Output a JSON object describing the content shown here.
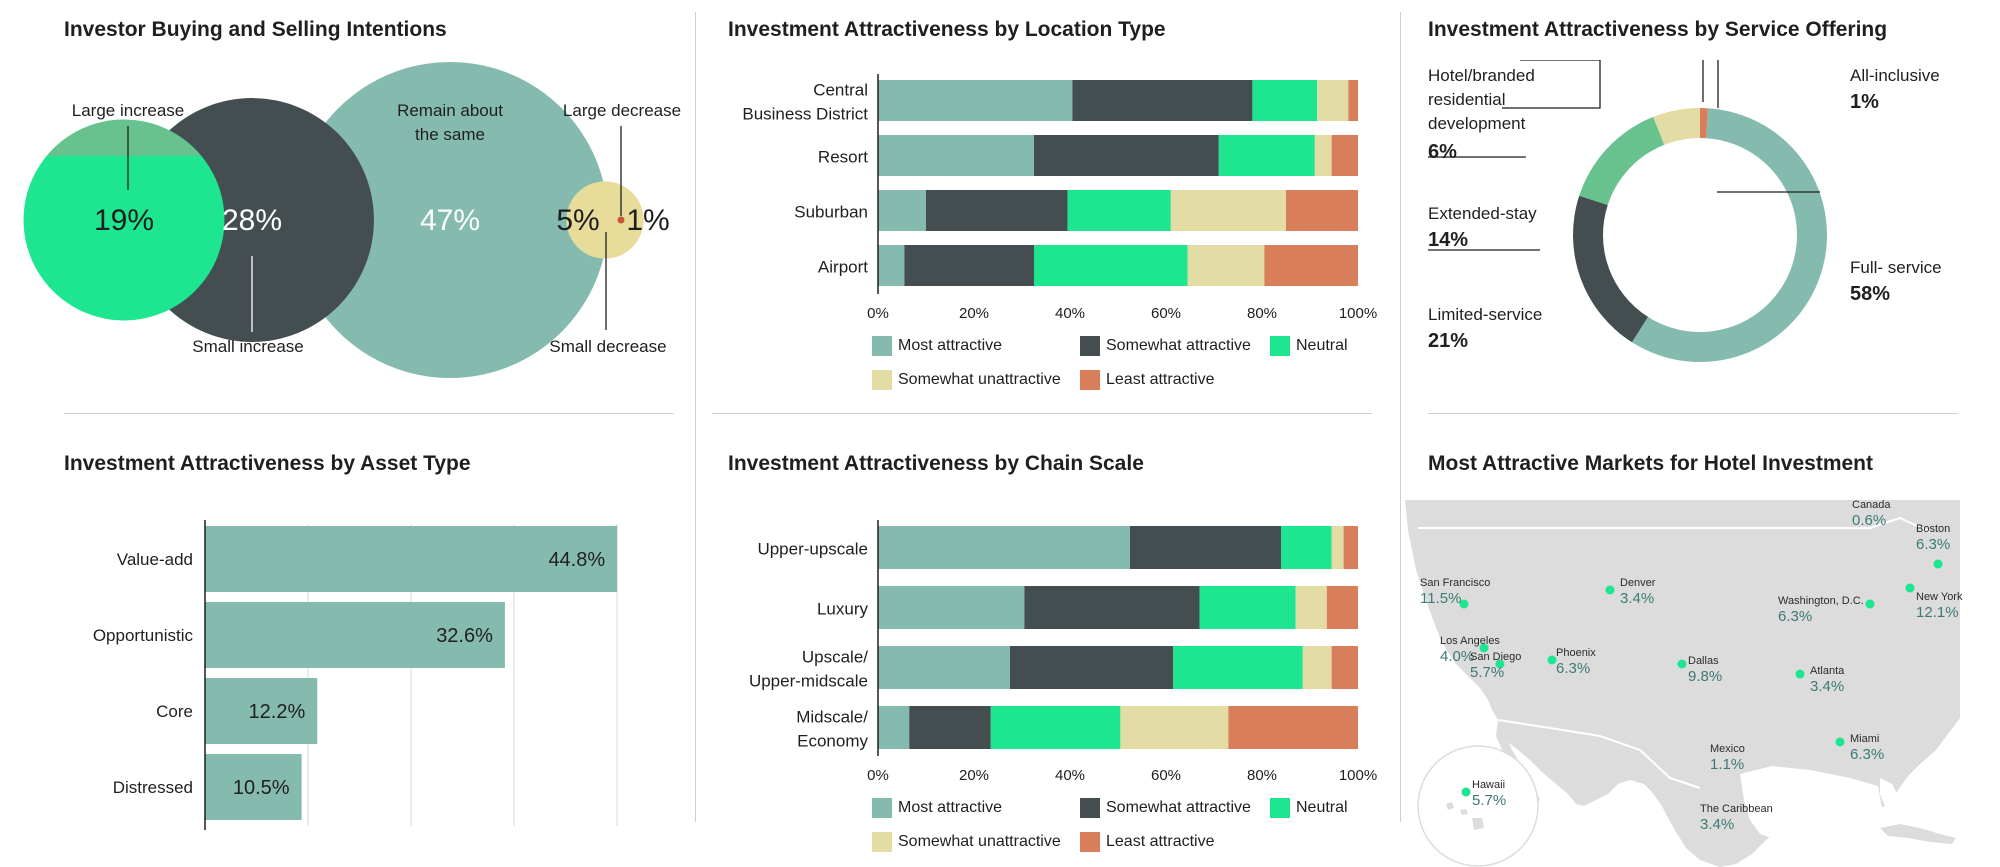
{
  "colors": {
    "most_attractive": "#84bbae",
    "somewhat_attractive": "#444e51",
    "neutral": "#1de590",
    "somewhat_unattractive": "#e3dca5",
    "least_attractive": "#d97e5a",
    "large_increase": "#67c28e",
    "large_decrease": "#e8dc9a",
    "small_decrease": "#c9533b",
    "map_land": "#dcdcdc",
    "map_dot": "#1de590",
    "map_text": "#3c7a73"
  },
  "panel_intentions": {
    "title": "Investor Buying and Selling Intentions"
  },
  "panel_location": {
    "title": "Investment Attractiveness by Location Type"
  },
  "panel_service": {
    "title": "Investment Attractiveness by Service Offering",
    "labels": {
      "hotel_branded": [
        "Hotel/branded",
        "residential",
        "development"
      ],
      "hotel_branded_value": "6%",
      "all_inclusive": "All-inclusive",
      "all_inclusive_value": "1%",
      "extended_stay": "Extended-stay",
      "extended_stay_value": "14%",
      "limited_service": "Limited-service",
      "limited_service_value": "21%",
      "full_service": "Full- service",
      "full_service_value": "58%"
    }
  },
  "panel_asset": {
    "title": "Investment Attractiveness by Asset Type"
  },
  "panel_chain": {
    "title": "Investment Attractiveness by Chain Scale"
  },
  "panel_markets": {
    "title": "Most Attractive Markets for Hotel Investment",
    "markets": [
      {
        "name": "Canada",
        "value": "0.6%",
        "dot": false
      },
      {
        "name": "Boston",
        "value": "6.3%",
        "dot": true
      },
      {
        "name": "San Francisco",
        "value": "11.5%",
        "dot": true
      },
      {
        "name": "Denver",
        "value": "3.4%",
        "dot": true
      },
      {
        "name": "Washington, D.C.",
        "value": "6.3%",
        "dot": true
      },
      {
        "name": "New York",
        "value": "12.1%",
        "dot": true
      },
      {
        "name": "Los Angeles",
        "value": "4.0%",
        "dot": true
      },
      {
        "name": "San Diego",
        "value": "5.7%",
        "dot": true
      },
      {
        "name": "Phoenix",
        "value": "6.3%",
        "dot": true
      },
      {
        "name": "Dallas",
        "value": "9.8%",
        "dot": true
      },
      {
        "name": "Atlanta",
        "value": "3.4%",
        "dot": true
      },
      {
        "name": "Miami",
        "value": "6.3%",
        "dot": true
      },
      {
        "name": "Mexico",
        "value": "1.1%",
        "dot": false
      },
      {
        "name": "Hawaii",
        "value": "5.7%",
        "dot": true
      },
      {
        "name": "The Caribbean",
        "value": "3.4%",
        "dot": false
      }
    ]
  },
  "chart_data": [
    {
      "type": "bubble",
      "title": "Investor Buying and Selling Intentions",
      "categories": [
        "Large increase",
        "Small increase",
        "Remain about the same",
        "Large decrease",
        "Small decrease"
      ],
      "values": [
        19,
        28,
        47,
        5,
        1
      ],
      "value_labels": [
        "19%",
        "28%",
        "47%",
        "5%",
        "1%"
      ],
      "label_lines": [
        [
          "Large increase"
        ],
        [
          "Small increase"
        ],
        [
          "Remain about",
          "the same"
        ],
        [
          "Large decrease"
        ],
        [
          "Small decrease"
        ]
      ]
    },
    {
      "type": "bar",
      "orientation": "horizontal",
      "stacked": true,
      "title": "Investment Attractiveness by Location Type",
      "categories": [
        [
          "Central",
          "Business District"
        ],
        [
          "Resort"
        ],
        [
          "Suburban"
        ],
        [
          "Airport"
        ]
      ],
      "series": [
        {
          "name": "Most attractive",
          "values": [
            40.5,
            32.5,
            10,
            5.5
          ]
        },
        {
          "name": "Somewhat attractive",
          "values": [
            37.5,
            38.5,
            29.5,
            27
          ]
        },
        {
          "name": "Neutral",
          "values": [
            13.5,
            20,
            21.5,
            32
          ]
        },
        {
          "name": "Somewhat unattractive",
          "values": [
            6.5,
            3.5,
            24,
            16
          ]
        },
        {
          "name": "Least attractive",
          "values": [
            2,
            5.5,
            15,
            19.5
          ]
        }
      ],
      "xticks": [
        "0%",
        "20%",
        "40%",
        "60%",
        "80%",
        "100%"
      ],
      "xlim": [
        0,
        100
      ]
    },
    {
      "type": "pie",
      "donut": true,
      "title": "Investment Attractiveness by Service Offering",
      "categories": [
        "Full- service",
        "Limited-service",
        "Extended-stay",
        "Hotel/branded residential development",
        "All-inclusive"
      ],
      "values": [
        58,
        21,
        14,
        6,
        1
      ],
      "colors": [
        "#84bbae",
        "#444e51",
        "#67c28e",
        "#e3dca5",
        "#d97e5a"
      ]
    },
    {
      "type": "bar",
      "orientation": "horizontal",
      "title": "Investment Attractiveness by Asset Type",
      "categories": [
        "Value-add",
        "Opportunistic",
        "Core",
        "Distressed"
      ],
      "values": [
        44.8,
        32.6,
        12.2,
        10.5
      ],
      "value_labels": [
        "44.8%",
        "32.6%",
        "12.2%",
        "10.5%"
      ],
      "xlim": [
        0,
        50
      ]
    },
    {
      "type": "bar",
      "orientation": "horizontal",
      "stacked": true,
      "title": "Investment Attractiveness by Chain Scale",
      "categories": [
        [
          "Upper-upscale"
        ],
        [
          "Luxury"
        ],
        [
          "Upscale/",
          "Upper-midscale"
        ],
        [
          "Midscale/",
          "Economy"
        ]
      ],
      "series": [
        {
          "name": "Most attractive",
          "values": [
            52.5,
            30.5,
            27.5,
            6.5
          ]
        },
        {
          "name": "Somewhat attractive",
          "values": [
            31.5,
            36.5,
            34,
            17
          ]
        },
        {
          "name": "Neutral",
          "values": [
            10.5,
            20,
            27,
            27
          ]
        },
        {
          "name": "Somewhat unattractive",
          "values": [
            2.5,
            6.5,
            6,
            22.5
          ]
        },
        {
          "name": "Least attractive",
          "values": [
            3,
            6.5,
            5.5,
            27
          ]
        }
      ],
      "xticks": [
        "0%",
        "20%",
        "40%",
        "60%",
        "80%",
        "100%"
      ],
      "xlim": [
        0,
        100
      ]
    }
  ]
}
